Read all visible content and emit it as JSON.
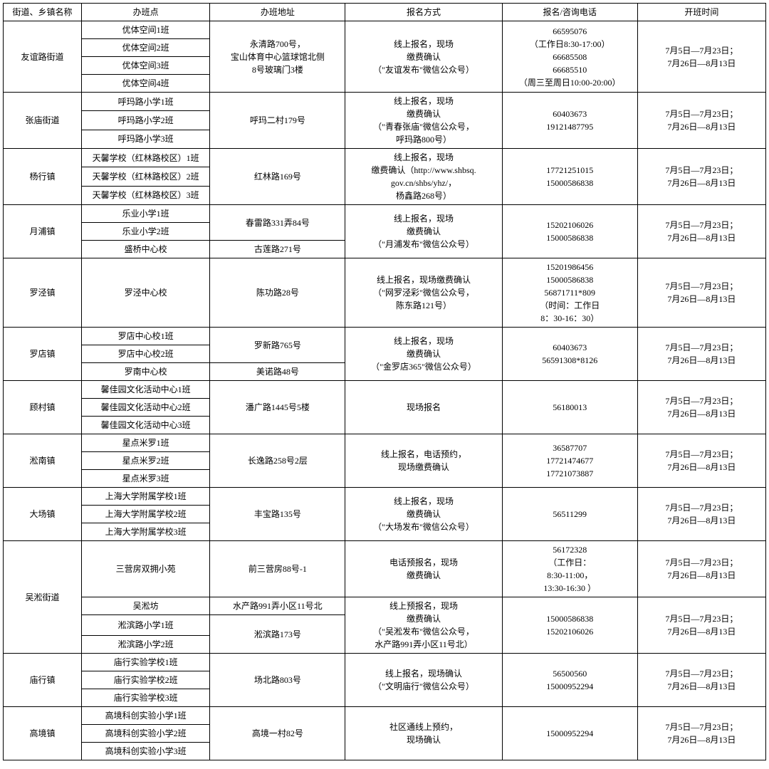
{
  "headers": [
    "街道、乡镇名称",
    "办班点",
    "办班地址",
    "报名方式",
    "报名/咨询电话",
    "开班时间"
  ],
  "common_time": "7月5日—7月23日；\n7月26日—8月13日",
  "groups": [
    {
      "district": "友谊路街道",
      "classes": [
        "优体空间1班",
        "优体空间2班",
        "优体空间3班",
        "优体空间4班"
      ],
      "addresses": [
        "永清路700号，\n宝山体育中心篮球馆北侧\n8号玻璃门3楼"
      ],
      "addr_spans": [
        4
      ],
      "method": "线上报名，现场\n缴费确认\n（\"友谊发布\"微信公众号）",
      "phone": "66595076\n（工作日8:30-17:00）\n66685508\n66685510\n（周三至周日10:00-20:00）"
    },
    {
      "district": "张庙街道",
      "classes": [
        "呼玛路小学1班",
        "呼玛路小学2班",
        "呼玛路小学3班"
      ],
      "addresses": [
        "呼玛二村179号"
      ],
      "addr_spans": [
        3
      ],
      "method": "线上报名，现场\n缴费确认\n（\"青春张庙\"微信公众号，\n呼玛路800号）",
      "phone": "60403673\n19121487795"
    },
    {
      "district": "杨行镇",
      "classes": [
        "天馨学校（红林路校区）1班",
        "天馨学校（红林路校区）2班",
        "天馨学校（红林路校区）3班"
      ],
      "addresses": [
        "红林路169号"
      ],
      "addr_spans": [
        3
      ],
      "method": "线上报名，现场\n缴费确认（http://www.shbsq.\ngov.cn/shbs/yhz/，\n杨鑫路268号）",
      "phone": "17721251015\n15000586838"
    },
    {
      "district": "月浦镇",
      "classes": [
        "乐业小学1班",
        "乐业小学2班",
        "盛桥中心校"
      ],
      "addresses": [
        "春雷路331弄84号",
        "古莲路271号"
      ],
      "addr_spans": [
        2,
        1
      ],
      "method": "线上报名，现场\n缴费确认\n（\"月浦发布\"微信公众号）",
      "phone": "15202106026\n15000586838"
    },
    {
      "district": "罗泾镇",
      "classes": [
        "罗泾中心校"
      ],
      "addresses": [
        "陈功路28号"
      ],
      "addr_spans": [
        1
      ],
      "method": "线上报名，现场缴费确认\n（\"网罗泾彩\"微信公众号，\n陈东路121号）",
      "phone": "15201986456\n15000586838\n56871711*809\n（时间：工作日\n8：30-16：30）"
    },
    {
      "district": "罗店镇",
      "classes": [
        "罗店中心校1班",
        "罗店中心校2班",
        "罗南中心校"
      ],
      "addresses": [
        "罗新路765号",
        "美诺路48号"
      ],
      "addr_spans": [
        2,
        1
      ],
      "method": "线上报名，现场\n缴费确认\n（\"金罗店365\"微信公众号）",
      "phone": "60403673\n56591308*8126"
    },
    {
      "district": "顾村镇",
      "classes": [
        "馨佳园文化活动中心1班",
        "馨佳园文化活动中心2班",
        "馨佳园文化活动中心3班"
      ],
      "addresses": [
        "潘广路1445号5楼"
      ],
      "addr_spans": [
        3
      ],
      "method": "现场报名",
      "phone": "56180013"
    },
    {
      "district": "淞南镇",
      "classes": [
        "星点米罗1班",
        "星点米罗2班",
        "星点米罗3班"
      ],
      "addresses": [
        "长逸路258号2层"
      ],
      "addr_spans": [
        3
      ],
      "method": "线上报名，电话预约，\n现场缴费确认",
      "phone": "36587707\n17721474677\n17721073887"
    },
    {
      "district": "大场镇",
      "classes": [
        "上海大学附属学校1班",
        "上海大学附属学校2班",
        "上海大学附属学校3班"
      ],
      "addresses": [
        "丰宝路135号"
      ],
      "addr_spans": [
        3
      ],
      "method": "线上报名，现场\n缴费确认\n（\"大场发布\"微信公众号）",
      "phone": "56511299"
    },
    {
      "district": "庙行镇",
      "classes": [
        "庙行实验学校1班",
        "庙行实验学校2班",
        "庙行实验学校3班"
      ],
      "addresses": [
        "场北路803号"
      ],
      "addr_spans": [
        3
      ],
      "method": "线上报名，现场确认\n（\"文明庙行\"微信公众号）",
      "phone": "56500560\n15000952294"
    },
    {
      "district": "高境镇",
      "classes": [
        "高境科创实验小学1班",
        "高境科创实验小学2班",
        "高境科创实验小学3班"
      ],
      "addresses": [
        "高境一村82号"
      ],
      "addr_spans": [
        3
      ],
      "method": "社区通线上预约，\n现场确认",
      "phone": "15000952294"
    }
  ],
  "wusong": {
    "district": "吴淞街道",
    "sub1": {
      "class": "三营房双拥小苑",
      "address": "前三营房88号-1",
      "method": "电话预报名，现场\n缴费确认",
      "phone": "56172328\n（工作日：\n8:30-11:00，\n13:30-16:30 ）"
    },
    "sub2": {
      "classes": [
        "吴淞坊",
        "淞滨路小学1班",
        "淞滨路小学2班"
      ],
      "addresses": [
        "水产路991弄小区11号北",
        "淞滨路173号"
      ],
      "addr_spans": [
        1,
        2
      ],
      "method": "线上预报名，现场\n缴费确认\n（\"吴淞发布\"微信公众号，\n水产路991弄小区11号北）",
      "phone": "15000586838\n15202106026"
    }
  }
}
